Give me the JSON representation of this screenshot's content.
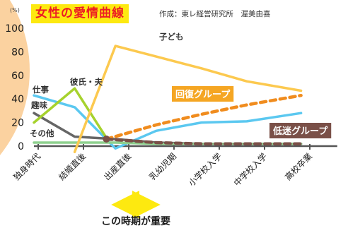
{
  "title": "女性の愛情曲線",
  "credit": "作成：東レ経営研究所　渥美由喜",
  "chart_data": {
    "type": "line",
    "title": "女性の愛情曲線",
    "y_unit": "(%)",
    "ylim": [
      0,
      100
    ],
    "y_ticks": [
      0,
      20,
      40,
      60,
      80,
      100
    ],
    "grid": false,
    "categories": [
      "独身時代",
      "結婚直後",
      "出産直後",
      "乳幼児期",
      "小学校入学",
      "中学校入学",
      "高校卒業"
    ],
    "series": [
      {
        "name": "仕事",
        "color": "#5bc8f0",
        "style": "solid",
        "points": [
          [
            0,
            43
          ],
          [
            0.9,
            33
          ],
          [
            1.8,
            -2
          ],
          [
            2.7,
            13
          ],
          [
            3.7,
            20
          ],
          [
            4.7,
            21
          ],
          [
            5.9,
            28
          ]
        ]
      },
      {
        "name": "趣味",
        "color": "#666666",
        "style": "solid",
        "points": [
          [
            0,
            28
          ],
          [
            0.9,
            8
          ],
          [
            1.8,
            6
          ],
          [
            2.7,
            3
          ],
          [
            3.7,
            2
          ],
          [
            4.7,
            2
          ],
          [
            5.9,
            2
          ]
        ]
      },
      {
        "name": "彼氏・夫",
        "color": "#a6d22d",
        "style": "solid",
        "points": [
          [
            0,
            20
          ],
          [
            0.9,
            49
          ],
          [
            1.6,
            7
          ]
        ]
      },
      {
        "name": "その他",
        "color": "#8ed08e",
        "style": "solid",
        "points": [
          [
            0,
            3
          ],
          [
            0.9,
            3
          ],
          [
            1.8,
            3
          ],
          [
            2.7,
            2
          ],
          [
            3.7,
            2
          ],
          [
            4.7,
            2
          ],
          [
            5.9,
            2
          ]
        ]
      },
      {
        "name": "子ども",
        "color": "#fcc94f",
        "style": "solid",
        "points": [
          [
            0.9,
            -5
          ],
          [
            1.8,
            85
          ],
          [
            2.7,
            76
          ],
          [
            3.7,
            66
          ],
          [
            4.7,
            55
          ],
          [
            5.9,
            47
          ]
        ]
      },
      {
        "name": "回復グループ",
        "color": "#f08c1e",
        "style": "dashed",
        "points": [
          [
            1.6,
            6
          ],
          [
            2.7,
            18
          ],
          [
            3.7,
            27
          ],
          [
            4.7,
            35
          ],
          [
            5.9,
            43
          ]
        ]
      },
      {
        "name": "低迷グループ",
        "color": "#7a5048",
        "style": "dashed",
        "points": [
          [
            1.6,
            6
          ],
          [
            2.7,
            3
          ],
          [
            3.7,
            2
          ],
          [
            4.7,
            2
          ],
          [
            5.9,
            2
          ]
        ]
      }
    ],
    "annotation": {
      "text": "この時期が重要",
      "range": [
        1.8,
        2.7
      ]
    }
  }
}
